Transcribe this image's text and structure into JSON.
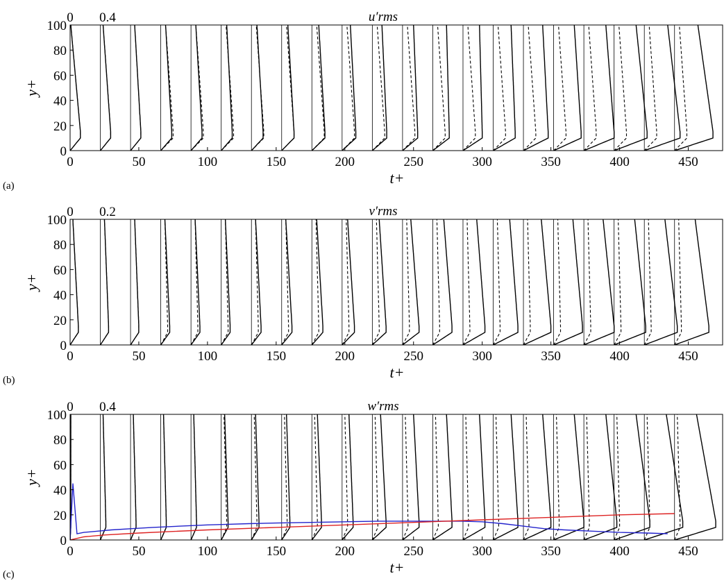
{
  "chart_data": [
    {
      "type": "line",
      "panel_label": "(a)",
      "title": "u′rms",
      "xlabel": "t+",
      "ylabel": "y+",
      "xlim": [
        0,
        475
      ],
      "ylim": [
        0,
        100
      ],
      "xticks": [
        0,
        50,
        100,
        150,
        200,
        250,
        300,
        350,
        400,
        450
      ],
      "yticks": [
        0,
        20,
        40,
        60,
        80,
        100
      ],
      "profile_scale_labels": [
        "0",
        "0.4"
      ],
      "profile_times": [
        0,
        22,
        44,
        66,
        88,
        110,
        132,
        154,
        176,
        198,
        220,
        242,
        264,
        286,
        308,
        330,
        352,
        374,
        396,
        418,
        440
      ],
      "solid_profile": {
        "y": [
          0,
          2,
          5,
          10,
          15,
          20,
          30,
          45,
          60,
          80,
          100
        ],
        "peak_amplitude": [
          7.5,
          7.5,
          7.5,
          8,
          8,
          8,
          8.5,
          9,
          9.5,
          10,
          10.5,
          11,
          12,
          14,
          16,
          18,
          20,
          22,
          24,
          26,
          28
        ],
        "top_amplitude": [
          0.5,
          2,
          3,
          3.5,
          3.5,
          4,
          4,
          4.5,
          5,
          6,
          7,
          8,
          10,
          12,
          13,
          14,
          15,
          16,
          16,
          17,
          17
        ]
      },
      "dashed_profile": {
        "y": [
          0,
          2,
          5,
          10,
          15,
          20,
          30,
          45,
          60,
          80,
          100
        ],
        "peak_amplitude": [
          7.5,
          7.5,
          7.5,
          9,
          9,
          9,
          9,
          9,
          9,
          9,
          9,
          9,
          9,
          9,
          9,
          9,
          9,
          9,
          9,
          9,
          9
        ],
        "top_amplitude": [
          0.5,
          2,
          3,
          3.5,
          3.5,
          3.5,
          3.5,
          3.5,
          3.5,
          3.5,
          3.5,
          3.5,
          3.5,
          3.5,
          3.5,
          3.5,
          3.5,
          3.5,
          3.5,
          3.5,
          3.5
        ]
      }
    },
    {
      "type": "line",
      "panel_label": "(b)",
      "title": "v′rms",
      "xlabel": "t+",
      "ylabel": "y+",
      "xlim": [
        0,
        475
      ],
      "ylim": [
        0,
        100
      ],
      "xticks": [
        0,
        50,
        100,
        150,
        200,
        250,
        300,
        350,
        400,
        450
      ],
      "yticks": [
        0,
        20,
        40,
        60,
        80,
        100
      ],
      "profile_scale_labels": [
        "0",
        "0.2"
      ],
      "profile_times": [
        0,
        22,
        44,
        66,
        88,
        110,
        132,
        154,
        176,
        198,
        220,
        242,
        264,
        286,
        308,
        330,
        352,
        374,
        396,
        418,
        440
      ],
      "solid_profile": {
        "y": [
          0,
          2,
          5,
          10,
          15,
          20,
          30,
          45,
          60,
          80,
          100
        ],
        "peak_amplitude": [
          6,
          6,
          6,
          6.5,
          6.5,
          6.5,
          7,
          7.5,
          8,
          9,
          10,
          12,
          14,
          16,
          18,
          20,
          21,
          22,
          23,
          24,
          25
        ],
        "top_amplitude": [
          2,
          3,
          3,
          3,
          3,
          3,
          3,
          3,
          3.5,
          4,
          5,
          6,
          8,
          10,
          12,
          13,
          14,
          14,
          15,
          15,
          15
        ]
      },
      "dashed_profile": {
        "y": [
          0,
          2,
          5,
          10,
          15,
          20,
          30,
          45,
          60,
          80,
          100
        ],
        "peak_amplitude": [
          6,
          6,
          6,
          5,
          5,
          5,
          5,
          5,
          5,
          5,
          5,
          5,
          5,
          5,
          5,
          5,
          5,
          5,
          5,
          5,
          5
        ],
        "top_amplitude": [
          2,
          3,
          3,
          3,
          3,
          3,
          3,
          3,
          3,
          3,
          3,
          3,
          3,
          3,
          3,
          3,
          3,
          3,
          3,
          3,
          3
        ]
      }
    },
    {
      "type": "line",
      "panel_label": "(c)",
      "title": "w′rms",
      "xlabel": "t+",
      "ylabel": "y+",
      "xlim": [
        0,
        475
      ],
      "ylim": [
        0,
        100
      ],
      "xticks": [
        0,
        50,
        100,
        150,
        200,
        250,
        300,
        350,
        400,
        450
      ],
      "yticks": [
        0,
        20,
        40,
        60,
        80,
        100
      ],
      "profile_scale_labels": [
        "0",
        "0.4"
      ],
      "profile_times": [
        0,
        22,
        44,
        66,
        88,
        110,
        132,
        154,
        176,
        198,
        220,
        242,
        264,
        286,
        308,
        330,
        352,
        374,
        396,
        418,
        440
      ],
      "solid_profile": {
        "y": [
          0,
          2,
          5,
          10,
          15,
          20,
          30,
          45,
          60,
          80,
          100
        ],
        "peak_amplitude": [
          0.5,
          4,
          4,
          4,
          4,
          5,
          5.5,
          6,
          7,
          8,
          10,
          12,
          14,
          16,
          18,
          20,
          22,
          24,
          26,
          28,
          30
        ],
        "top_amplitude": [
          0.5,
          2,
          2,
          2,
          2,
          2.5,
          3,
          3.5,
          4,
          5,
          6,
          8,
          10,
          12,
          13,
          14,
          15,
          16,
          16,
          16,
          16
        ]
      },
      "dashed_profile": {
        "y": [
          0,
          2,
          5,
          10,
          15,
          20,
          30,
          45,
          60,
          80,
          100
        ],
        "peak_amplitude": [
          0.5,
          4,
          4,
          4,
          4,
          4,
          4,
          4,
          4,
          4,
          4,
          4,
          4,
          4,
          4,
          4,
          4,
          4,
          4,
          4,
          4
        ],
        "top_amplitude": [
          0.5,
          2,
          2,
          2,
          2,
          2,
          2,
          2,
          2,
          2,
          2,
          2,
          2,
          2,
          2,
          2,
          2,
          2,
          2,
          2,
          2
        ]
      },
      "overlay_series": [
        {
          "color": "#2222cc",
          "x": [
            0,
            2,
            5,
            10,
            20,
            30,
            45,
            60,
            80,
            100,
            115,
            130,
            150,
            175,
            200,
            225,
            250,
            270,
            285,
            300,
            315,
            330,
            345,
            360,
            380,
            400,
            420,
            435
          ],
          "y": [
            0,
            45,
            5,
            6,
            7,
            8,
            9,
            10,
            11,
            12,
            12.5,
            13,
            13.5,
            14,
            14.5,
            15,
            15,
            15,
            15,
            14.5,
            13,
            11,
            9,
            8,
            7,
            6,
            5.5,
            5
          ]
        },
        {
          "color": "#dd2222",
          "x": [
            0,
            10,
            25,
            50,
            75,
            100,
            150,
            200,
            250,
            300,
            350,
            400,
            440
          ],
          "y": [
            0,
            2.5,
            4,
            5.5,
            6.8,
            8,
            10,
            12,
            14,
            16,
            18,
            20,
            21
          ]
        }
      ]
    }
  ]
}
